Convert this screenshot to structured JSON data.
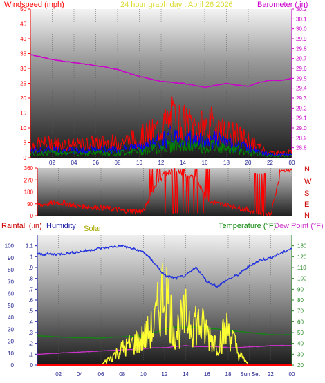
{
  "header": {
    "windspeed_label": "Windspeed (mph)",
    "title": "24 hour graph day : April 26 2026",
    "barometer_label": "Barometer (.in)"
  },
  "direction_labels": [
    "N",
    "W",
    "S",
    "E",
    "N"
  ],
  "bottom_header": {
    "rainfall_label": "Rainfall (.in)",
    "humidity_label": "Humidity",
    "solar_label": "Solar",
    "temperature_label": "Temperature (°F)",
    "dewpoint_label": "Dew Point (°F)"
  },
  "x_ticks": [
    "02",
    "04",
    "06",
    "08",
    "10",
    "12",
    "14",
    "16",
    "18",
    "20",
    "22",
    "00"
  ],
  "bottom_x_ticks": [
    "02",
    "04",
    "06",
    "08",
    "10",
    "12",
    "14",
    "16",
    "18",
    "Sun",
    "Set",
    "22",
    "00"
  ],
  "colors": {
    "windspeed": "#ff0000",
    "gust": "#0000ff",
    "wind_avg": "#008800",
    "barometer": "#cc00cc",
    "direction": "#ff0000",
    "humidity": "#2233dd",
    "solar": "#ffff33",
    "temperature": "#118811",
    "dewpoint": "#cc33cc",
    "rain": "#ff0000",
    "axis_left": "#ff0000",
    "axis_blue": "#1a1a8c",
    "axis_right_bottom": "#228822"
  },
  "chart_data": [
    {
      "type": "line",
      "title": "24 hour graph day : April 26 2026",
      "ylabel": "Windspeed (mph)",
      "y2label": "Barometer (.in)",
      "ylim": [
        0,
        50
      ],
      "y2lim": [
        28.7,
        30.2
      ],
      "x": [
        0,
        2,
        4,
        6,
        8,
        10,
        12,
        13,
        14,
        15,
        16,
        17,
        18,
        19,
        20,
        21,
        22,
        23,
        24
      ],
      "series": [
        {
          "name": "Windspeed (mph)",
          "values": [
            5,
            6,
            5,
            6,
            6,
            8,
            12,
            16,
            14,
            13,
            12,
            14,
            10,
            9,
            7,
            4,
            2,
            2,
            2
          ]
        },
        {
          "name": "Barometer (.in)",
          "values": [
            29.74,
            29.69,
            29.66,
            29.63,
            29.59,
            29.52,
            29.47,
            29.46,
            29.45,
            29.43,
            29.41,
            29.43,
            29.45,
            29.43,
            29.42,
            29.46,
            29.48,
            29.48,
            29.5
          ]
        }
      ]
    },
    {
      "type": "line",
      "ylabel": "Wind direction",
      "ylim": [
        0,
        360
      ],
      "yticks": [
        0,
        90,
        180,
        270,
        360
      ],
      "x": [
        0,
        2,
        4,
        6,
        8,
        10,
        11,
        12,
        13,
        14,
        15,
        16,
        17,
        18,
        19,
        20,
        21,
        22,
        23,
        24
      ],
      "series": [
        {
          "name": "Direction",
          "values": [
            80,
            100,
            70,
            60,
            40,
            30,
            200,
            320,
            340,
            300,
            280,
            120,
            90,
            80,
            60,
            40,
            20,
            10,
            330,
            340
          ]
        }
      ]
    },
    {
      "type": "line",
      "ylabel": "Rainfall (.in)",
      "ylim": [
        0,
        1.2
      ],
      "y2label": "Temperature (°F)",
      "y2lim": [
        20,
        140
      ],
      "x": [
        0,
        2,
        4,
        6,
        8,
        10,
        11,
        12,
        13,
        14,
        15,
        16,
        17,
        18,
        19,
        20,
        21,
        22,
        23,
        24
      ],
      "series": [
        {
          "name": "Humidity",
          "values": [
            93,
            93,
            95,
            98,
            100,
            95,
            86,
            75,
            73,
            75,
            82,
            70,
            66,
            72,
            76,
            83,
            88,
            90,
            94,
            98
          ]
        },
        {
          "name": "Solar",
          "values": [
            0,
            0,
            0,
            0,
            15,
            25,
            35,
            75,
            30,
            45,
            40,
            30,
            20,
            35,
            10,
            0,
            0,
            0,
            0,
            0
          ]
        },
        {
          "name": "Temperature (°F)",
          "values": [
            47,
            46,
            45,
            45,
            46,
            47,
            50,
            53,
            55,
            55,
            55,
            54,
            53,
            52,
            51,
            50,
            49,
            48,
            48,
            48
          ]
        },
        {
          "name": "Dew Point (°F)",
          "values": [
            30,
            31,
            32,
            33,
            34,
            35,
            36,
            36,
            37,
            38,
            37,
            37,
            37,
            36,
            36,
            37,
            37,
            38,
            38,
            38
          ]
        },
        {
          "name": "Rainfall (.in)",
          "values": [
            0,
            0,
            0,
            0,
            0,
            0,
            0,
            0,
            0,
            0,
            0,
            0,
            0,
            0,
            0,
            0,
            0,
            0,
            0,
            0
          ]
        }
      ]
    }
  ]
}
